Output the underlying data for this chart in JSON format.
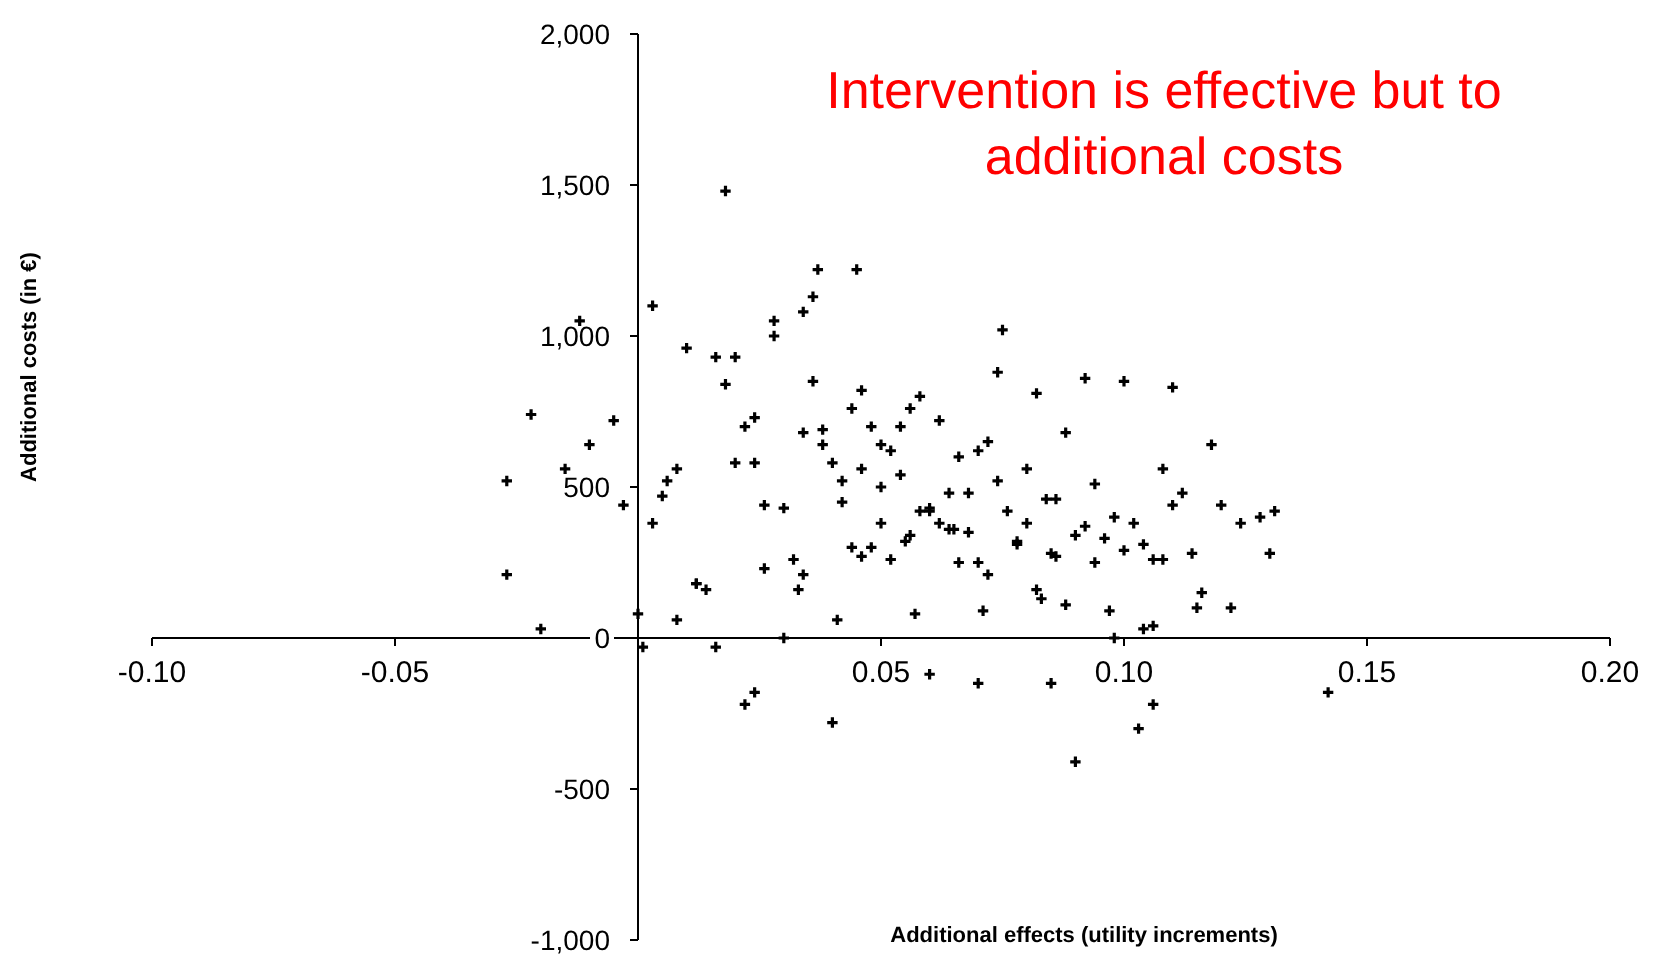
{
  "chart_data": {
    "type": "scatter",
    "xlabel": "Additional effects  (utility increments)",
    "ylabel": "Additional costs (in €)",
    "annotations": [
      "Intervention is effective but to additional costs"
    ],
    "xlim": [
      -0.1,
      0.2
    ],
    "xticks": [
      {
        "value": -0.1,
        "label": "-0.10"
      },
      {
        "value": -0.05,
        "label": "-0.05"
      },
      {
        "value": 0,
        "label": null
      },
      {
        "value": 0.05,
        "label": "0.05"
      },
      {
        "value": 0.1,
        "label": "0.10"
      },
      {
        "value": 0.15,
        "label": "0.15"
      },
      {
        "value": 0.2,
        "label": "0.20"
      }
    ],
    "ylim": [
      -1000,
      2000
    ],
    "yticks": [
      {
        "value": -1000,
        "label": "-1,000"
      },
      -500,
      0,
      500,
      {
        "value": 1000,
        "label": "1,000"
      },
      {
        "value": 1500,
        "label": "1,500"
      },
      {
        "value": 2000,
        "label": "2,000"
      }
    ],
    "grid": false,
    "marker": "cross",
    "series": [
      {
        "color": "#000000",
        "x": [
          -0.027,
          -0.027,
          -0.02,
          -0.022,
          -0.012,
          -0.015,
          -0.005,
          -0.01,
          -0.003,
          0.0,
          0.001,
          0.003,
          0.018,
          0.022,
          0.024,
          0.037,
          0.045,
          0.02,
          0.028,
          0.034,
          0.036,
          0.075,
          0.118,
          0.131,
          0.13,
          0.09,
          0.103,
          0.106,
          0.142,
          0.04,
          0.06,
          0.07,
          0.085,
          0.003,
          0.005,
          0.008,
          0.01,
          0.012,
          0.014,
          0.016,
          0.018,
          0.02,
          0.022,
          0.024,
          0.026,
          0.028,
          0.03,
          0.032,
          0.034,
          0.036,
          0.038,
          0.04,
          0.042,
          0.044,
          0.046,
          0.048,
          0.05,
          0.052,
          0.054,
          0.056,
          0.058,
          0.06,
          0.062,
          0.064,
          0.066,
          0.068,
          0.07,
          0.072,
          0.074,
          0.076,
          0.078,
          0.08,
          0.082,
          0.084,
          0.086,
          0.088,
          0.09,
          0.092,
          0.094,
          0.096,
          0.098,
          0.1,
          0.102,
          0.104,
          0.106,
          0.108,
          0.11,
          0.112,
          0.114,
          0.116,
          0.12,
          0.124,
          0.128,
          0.012,
          0.026,
          0.034,
          0.042,
          0.048,
          0.052,
          0.056,
          0.058,
          0.062,
          0.066,
          0.072,
          0.078,
          0.082,
          0.088,
          0.094,
          0.046,
          0.05,
          0.054,
          0.064,
          0.068,
          0.074,
          0.08,
          0.086,
          0.038,
          0.044,
          0.03,
          0.016,
          0.008,
          0.098,
          0.104,
          0.11,
          0.055,
          0.06,
          0.07,
          0.05,
          0.046,
          0.065,
          0.085,
          0.092,
          0.1,
          0.108,
          0.115,
          0.122,
          0.006,
          0.024,
          0.033,
          0.041,
          0.057,
          0.071,
          0.083,
          0.097,
          0.106
        ],
        "values": [
          520,
          210,
          30,
          740,
          1050,
          560,
          720,
          640,
          440,
          80,
          -30,
          1100,
          1480,
          -220,
          -180,
          1220,
          1220,
          930,
          1050,
          1080,
          1130,
          1020,
          640,
          420,
          280,
          -410,
          -300,
          -220,
          -180,
          -280,
          -120,
          -150,
          -150,
          380,
          470,
          60,
          960,
          180,
          160,
          930,
          840,
          580,
          700,
          730,
          440,
          1000,
          430,
          260,
          210,
          850,
          640,
          580,
          450,
          760,
          820,
          700,
          380,
          620,
          540,
          760,
          800,
          430,
          720,
          360,
          600,
          480,
          250,
          650,
          880,
          420,
          320,
          560,
          810,
          460,
          270,
          680,
          340,
          860,
          510,
          330,
          400,
          850,
          380,
          310,
          260,
          560,
          830,
          480,
          280,
          150,
          440,
          380,
          400,
          180,
          230,
          680,
          520,
          300,
          260,
          340,
          420,
          380,
          250,
          210,
          310,
          160,
          110,
          250,
          560,
          640,
          700,
          480,
          350,
          520,
          380,
          460,
          690,
          300,
          0,
          -30,
          560,
          0,
          30,
          440,
          320,
          420,
          620,
          500,
          270,
          360,
          280,
          370,
          290,
          260,
          100,
          100,
          520,
          580,
          160,
          60,
          80,
          90,
          130,
          90,
          40
        ]
      }
    ]
  }
}
